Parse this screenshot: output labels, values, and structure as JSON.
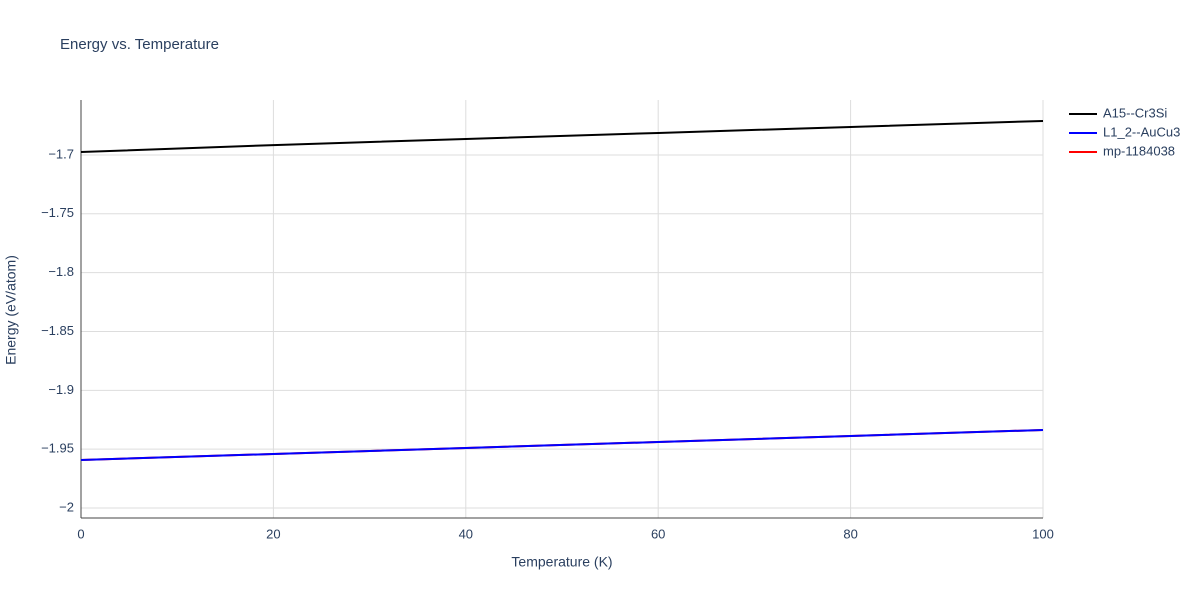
{
  "chart_data": {
    "type": "line",
    "title": "Energy vs. Temperature",
    "x_label": "Temperature (K)",
    "y_label": "Energy (eV/atom)",
    "x": [
      0,
      20,
      40,
      60,
      80,
      100
    ],
    "series": [
      {
        "name": "A15--Cr3Si",
        "color": "#000000",
        "values": [
          -1.6975,
          -1.6916,
          -1.6864,
          -1.6813,
          -1.6762,
          -1.6711
        ]
      },
      {
        "name": "L1_2--AuCu3",
        "color": "#0000ff",
        "values": [
          -1.9592,
          -1.9541,
          -1.949,
          -1.9439,
          -1.9388,
          -1.9337
        ]
      },
      {
        "name": "mp-1184038",
        "color": "#ff0000",
        "values": [
          -1.9592,
          -1.9541,
          -1.949,
          -1.9439,
          -1.9388,
          -1.9337
        ]
      }
    ],
    "xlim": [
      0,
      100
    ],
    "xticks": [
      0,
      20,
      40,
      60,
      80,
      100
    ],
    "ylim": [
      -2.0085,
      -1.6533
    ],
    "yticks": [
      {
        "value": -2,
        "label": "−2"
      },
      {
        "value": -1.95,
        "label": "−1.95"
      },
      {
        "value": -1.9,
        "label": "−1.9"
      },
      {
        "value": -1.85,
        "label": "−1.85"
      },
      {
        "value": -1.8,
        "label": "−1.8"
      },
      {
        "value": -1.75,
        "label": "−1.75"
      },
      {
        "value": -1.7,
        "label": "−1.7"
      }
    ],
    "grid": true,
    "legend": "right"
  }
}
